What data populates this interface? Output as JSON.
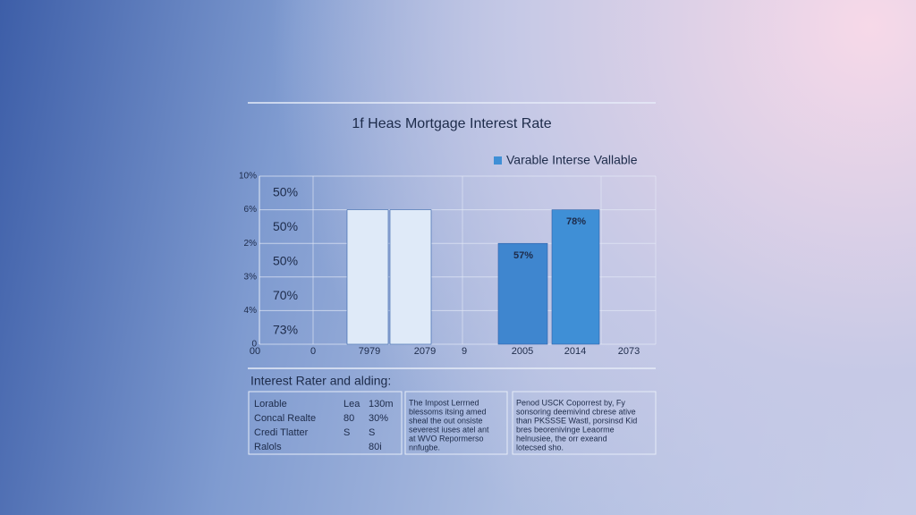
{
  "chart_data": {
    "type": "bar",
    "title": "1f Heas Mortgage Interest Rate",
    "legend": "Varable Interse Vallable",
    "legend_color": "#3f8fd6",
    "categories": [
      "00",
      "0",
      "7979",
      "2079",
      "9",
      "2005",
      "2014",
      "2073"
    ],
    "values": [
      null,
      null,
      4,
      4,
      null,
      3,
      4,
      null
    ],
    "colors": [
      null,
      null,
      "#dfeaf8",
      "#dfeaf8",
      null,
      "#3f86cf",
      "#3f8fd6",
      null
    ],
    "ylim": [
      0,
      5
    ],
    "yticks": [
      {
        "value": 0,
        "label": "0"
      },
      {
        "value": 1,
        "label": "4%"
      },
      {
        "value": 2,
        "label": "3%"
      },
      {
        "value": 3,
        "label": "2%"
      },
      {
        "value": 4,
        "label": "6%"
      },
      {
        "value": 5,
        "label": "10%"
      }
    ],
    "grid": true,
    "left_annotations": [
      "50%",
      "50%",
      "50%",
      "70%",
      "73%"
    ],
    "bar_annotations": [
      "57%",
      "78%"
    ]
  },
  "section": {
    "heading": "Interest Rater and alding:",
    "table": {
      "rows": [
        [
          "Lorable",
          "Lea",
          "130m"
        ],
        [
          "Concal Realte",
          "80",
          "30%"
        ],
        [
          "Credi Tlatter",
          "S",
          "S"
        ],
        [
          "Ralols",
          "",
          "80i"
        ]
      ]
    },
    "note1": [
      "The Impost Lerrned",
      "blessoms itsing amed",
      "sheal the out onsiste",
      "severest iuses atel ant",
      "at WVO Repormerso",
      "nnfugbe."
    ],
    "note2": [
      "Penod USCK Coporrest by, Fy",
      "sonsoring deemivind cbrese ative",
      "than PKSSSE Wastl, porsinsd Kid",
      "bres beorenivinge Leaorme",
      "helnusiee, the orr exeand",
      "lotecsed sho."
    ]
  }
}
